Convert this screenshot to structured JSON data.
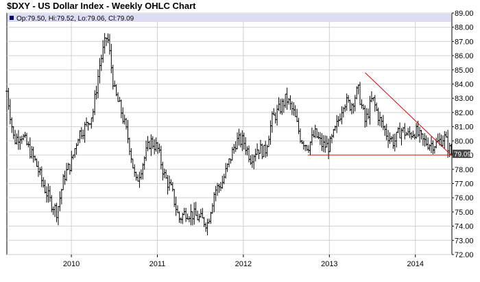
{
  "title": "$DXY - US Dollar Index - Weekly OHLC Chart",
  "ohlc_header": "Op:79.50, Hi:79.52, Lo:79.06, Cl:79.09",
  "last_value_label": "79.09",
  "colors": {
    "bars": "#000000",
    "grid": "#cfcfcf",
    "header_band": "#dcdcf2",
    "header_marker": "#000066",
    "trendline": "#dd0000",
    "last_label_bg": "#444444"
  },
  "chart_data": {
    "type": "ohlc",
    "frequency": "weekly",
    "xlim": [
      "2009-04",
      "2014-06"
    ],
    "ylim": [
      72.0,
      89.0
    ],
    "y_ticks": [
      "72.00",
      "73.00",
      "74.00",
      "75.00",
      "76.00",
      "77.00",
      "78.00",
      "79.00",
      "80.00",
      "81.00",
      "82.00",
      "83.00",
      "84.00",
      "85.00",
      "86.00",
      "87.00",
      "88.00",
      "89.00"
    ],
    "x_ticks": [
      "2010",
      "2011",
      "2012",
      "2013",
      "2014"
    ],
    "grid": true,
    "y_axis_side": "right",
    "trendlines": [
      {
        "name": "support",
        "points": [
          [
            "2012-10",
            79.0
          ],
          [
            "2014-06",
            79.0
          ]
        ]
      },
      {
        "name": "resistance",
        "points": [
          [
            "2013-06",
            84.8
          ],
          [
            "2014-06",
            79.0
          ]
        ]
      }
    ],
    "anchors": [
      [
        "2009-04",
        83.5
      ],
      [
        "2009-05",
        80.0
      ],
      [
        "2009-06",
        80.5
      ],
      [
        "2009-07",
        79.5
      ],
      [
        "2009-08",
        78.5
      ],
      [
        "2009-09",
        77.0
      ],
      [
        "2009-10",
        75.8
      ],
      [
        "2009-11",
        75.0
      ],
      [
        "2009-12",
        77.5
      ],
      [
        "2010-01",
        78.5
      ],
      [
        "2010-02",
        80.5
      ],
      [
        "2010-03",
        81.0
      ],
      [
        "2010-04",
        82.0
      ],
      [
        "2010-05",
        85.5
      ],
      [
        "2010-06",
        87.5
      ],
      [
        "2010-07",
        83.5
      ],
      [
        "2010-08",
        82.0
      ],
      [
        "2010-09",
        80.0
      ],
      [
        "2010-10",
        77.0
      ],
      [
        "2010-11",
        78.5
      ],
      [
        "2010-12",
        80.0
      ],
      [
        "2011-01",
        79.5
      ],
      [
        "2011-02",
        77.5
      ],
      [
        "2011-03",
        76.5
      ],
      [
        "2011-04",
        74.5
      ],
      [
        "2011-05",
        75.0
      ],
      [
        "2011-06",
        74.8
      ],
      [
        "2011-07",
        74.5
      ],
      [
        "2011-08",
        74.2
      ],
      [
        "2011-09",
        76.5
      ],
      [
        "2011-10",
        77.0
      ],
      [
        "2011-11",
        78.5
      ],
      [
        "2011-12",
        80.0
      ],
      [
        "2012-01",
        80.0
      ],
      [
        "2012-02",
        78.8
      ],
      [
        "2012-03",
        79.5
      ],
      [
        "2012-04",
        79.2
      ],
      [
        "2012-05",
        81.5
      ],
      [
        "2012-06",
        82.2
      ],
      [
        "2012-07",
        83.0
      ],
      [
        "2012-08",
        82.0
      ],
      [
        "2012-09",
        80.2
      ],
      [
        "2012-10",
        79.6
      ],
      [
        "2012-11",
        80.5
      ],
      [
        "2012-12",
        79.7
      ],
      [
        "2013-01",
        79.6
      ],
      [
        "2013-02",
        81.0
      ],
      [
        "2013-03",
        82.8
      ],
      [
        "2013-04",
        82.5
      ],
      [
        "2013-05",
        83.6
      ],
      [
        "2013-06",
        81.3
      ],
      [
        "2013-07",
        83.0
      ],
      [
        "2013-08",
        81.5
      ],
      [
        "2013-09",
        80.5
      ],
      [
        "2013-10",
        79.9
      ],
      [
        "2013-11",
        80.8
      ],
      [
        "2013-12",
        80.4
      ],
      [
        "2014-01",
        80.7
      ],
      [
        "2014-02",
        80.0
      ],
      [
        "2014-03",
        79.8
      ],
      [
        "2014-04",
        79.8
      ],
      [
        "2014-05",
        80.3
      ],
      [
        "2014-06",
        79.09
      ]
    ]
  }
}
